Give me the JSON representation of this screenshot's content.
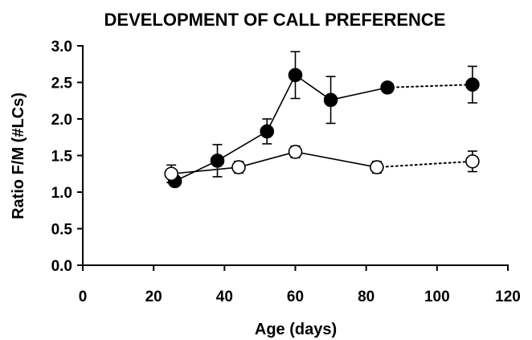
{
  "chart_data": {
    "type": "scatter",
    "title": "DEVELOPMENT OF CALL PREFERENCE",
    "xlabel": "Age (days)",
    "ylabel": "Ratio F/M (#LCs)",
    "xlim": [
      0,
      120
    ],
    "ylim": [
      0.0,
      3.0
    ],
    "x_ticks": [
      "0",
      "20",
      "40",
      "60",
      "80",
      "100",
      "120"
    ],
    "y_ticks": [
      "0.0",
      "0.5",
      "1.0",
      "1.5",
      "2.0",
      "2.5",
      "3.0"
    ],
    "grid": false,
    "legend": "none",
    "series": [
      {
        "marker": "filled-circle",
        "color": "#000000",
        "points": [
          {
            "x": 26,
            "y": 1.15,
            "err": 0.05
          },
          {
            "x": 38,
            "y": 1.43,
            "err": 0.22
          },
          {
            "x": 52,
            "y": 1.83,
            "err": 0.17
          },
          {
            "x": 60,
            "y": 2.6,
            "err": 0.32
          },
          {
            "x": 70,
            "y": 2.26,
            "err": 0.32
          },
          {
            "x": 86,
            "y": 2.43,
            "err": 0.0
          },
          {
            "x": 110,
            "y": 2.47,
            "err": 0.25
          }
        ],
        "dotted_from_index": 5
      },
      {
        "marker": "open-circle",
        "color": "#000000",
        "points": [
          {
            "x": 25,
            "y": 1.25,
            "err": 0.12
          },
          {
            "x": 44,
            "y": 1.34,
            "err": 0.08
          },
          {
            "x": 60,
            "y": 1.55,
            "err": 0.08
          },
          {
            "x": 83,
            "y": 1.34,
            "err": 0.08
          },
          {
            "x": 110,
            "y": 1.42,
            "err": 0.14
          }
        ],
        "dotted_from_index": 3
      }
    ]
  }
}
